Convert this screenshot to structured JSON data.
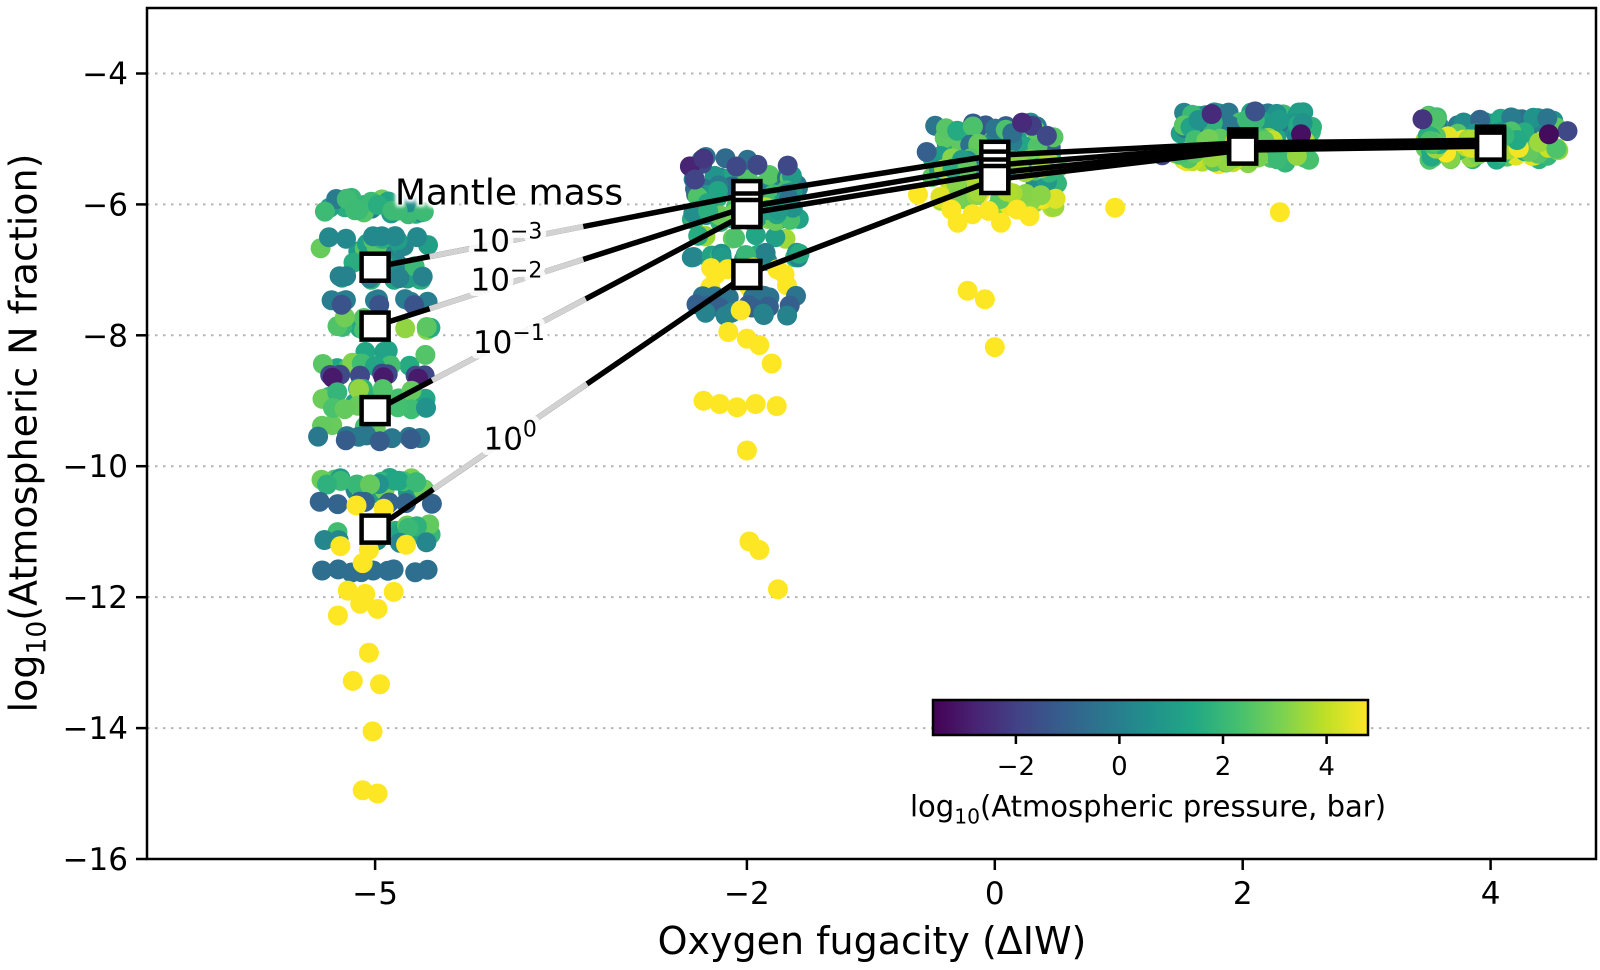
{
  "chart_data": {
    "type": "scatter",
    "title": "",
    "xlabel": {
      "text": "Oxygen fugacity (ΔIW)"
    },
    "ylabel": {
      "pre": "log",
      "sub": "10",
      "post": "(Atmospheric N fraction)"
    },
    "annotation": {
      "text": "Mantle mass"
    },
    "xlim": [
      -6.84,
      4.85
    ],
    "ylim": [
      -16,
      -3.0
    ],
    "xticks": [
      {
        "v": -5,
        "label": "−5"
      },
      {
        "v": -2,
        "label": "−2"
      },
      {
        "v": 0,
        "label": "0"
      },
      {
        "v": 2,
        "label": "2"
      },
      {
        "v": 4,
        "label": "4"
      }
    ],
    "yticks": [
      {
        "v": -4,
        "label": "−4"
      },
      {
        "v": -6,
        "label": "−6"
      },
      {
        "v": -8,
        "label": "−8"
      },
      {
        "v": -10,
        "label": "−10"
      },
      {
        "v": -12,
        "label": "−12"
      },
      {
        "v": -14,
        "label": "−14"
      },
      {
        "v": -16,
        "label": "−16"
      }
    ],
    "grid": {
      "axis": "y",
      "style": "dotted",
      "color": "#b5b5b5"
    },
    "colorbar": {
      "pre": "log",
      "sub": "10",
      "post": "(Atmospheric pressure, bar)",
      "colormap": "viridis",
      "vmin": -3.6,
      "vmax": 4.8,
      "ticks": [
        {
          "v": -2,
          "label": "−2"
        },
        {
          "v": 0,
          "label": "0"
        },
        {
          "v": 2,
          "label": "2"
        },
        {
          "v": 4,
          "label": "4"
        }
      ]
    },
    "series": [
      {
        "name": "mantle mass 1e-3",
        "label_base": "10",
        "label_exp": "−3",
        "x": [
          -5,
          -2,
          0,
          2,
          4
        ],
        "y": [
          -6.96,
          -5.85,
          -5.25,
          -5.06,
          -5.02
        ],
        "label_at": {
          "x": -3.94,
          "y": -6.55
        }
      },
      {
        "name": "mantle mass 1e-2",
        "label_base": "10",
        "label_exp": "−2",
        "x": [
          -5,
          -2,
          0,
          2,
          4
        ],
        "y": [
          -7.86,
          -6.04,
          -5.4,
          -5.1,
          -5.05
        ],
        "label_at": {
          "x": -3.94,
          "y": -7.15
        }
      },
      {
        "name": "mantle mass 1e-1",
        "label_base": "10",
        "label_exp": "−1",
        "x": [
          -5,
          -2,
          0,
          2,
          4
        ],
        "y": [
          -9.15,
          -6.14,
          -5.52,
          -5.13,
          -5.08
        ],
        "label_at": {
          "x": -3.92,
          "y": -8.1
        }
      },
      {
        "name": "mantle mass 1e0",
        "label_base": "10",
        "label_exp": "0",
        "x": [
          -5,
          -2,
          0,
          2,
          4
        ],
        "y": [
          -10.96,
          -7.07,
          -5.62,
          -5.17,
          -5.11
        ],
        "label_at": {
          "x": -3.91,
          "y": -9.58
        }
      }
    ],
    "scatter_clusters": [
      {
        "x": -5,
        "xspread": 0.45,
        "bands": [
          {
            "y0": -5.88,
            "y1": -6.72,
            "n": 36,
            "t0": 0.4,
            "t1": 0.8
          },
          {
            "y0": -6.74,
            "y1": -7.25,
            "n": 12,
            "t0": 0.42,
            "t1": 0.72
          }
        ],
        "rows": [
          {
            "y": -6.1,
            "n": 6,
            "t": 0.68
          },
          {
            "y": -6.5,
            "n": 6,
            "t": 0.47
          },
          {
            "y": -7.12,
            "n": 5,
            "t": 0.44
          }
        ]
      },
      {
        "x": -5,
        "xspread": 0.45,
        "bands": [
          {
            "y0": -7.72,
            "y1": -8.52,
            "n": 26,
            "t0": 0.55,
            "t1": 0.88
          }
        ],
        "rows": [
          {
            "y": -7.47,
            "n": 8,
            "t": 0.42
          },
          {
            "y": -7.53,
            "n": 3,
            "t": 0.26
          },
          {
            "y": -8.6,
            "n": 7,
            "t": 0.22
          },
          {
            "y": -8.65,
            "n": 3,
            "t": 0.07
          }
        ]
      },
      {
        "x": -5,
        "xspread": 0.45,
        "bands": [
          {
            "y0": -8.72,
            "y1": -9.45,
            "n": 26,
            "t0": 0.5,
            "t1": 0.85
          }
        ],
        "rows": [
          {
            "y": -9.55,
            "n": 7,
            "t": 0.4
          },
          {
            "y": -9.61,
            "n": 3,
            "t": 0.29
          }
        ]
      },
      {
        "x": -5,
        "xspread": 0.45,
        "bands": [
          {
            "y0": -9.72,
            "y1": -10.45,
            "n": 24,
            "t0": 0.45,
            "t1": 0.8
          },
          {
            "y0": -10.68,
            "y1": -11.05,
            "n": 12,
            "t0": 0.55,
            "t1": 0.78
          }
        ],
        "rows": [
          {
            "y": -10.56,
            "n": 8,
            "t": 0.32
          },
          {
            "y": -11.15,
            "n": 6,
            "t": 0.46
          },
          {
            "y": -11.6,
            "n": 9,
            "t": 0.36
          }
        ]
      },
      {
        "x": -2,
        "xspread": 0.45,
        "bands": [
          {
            "y0": -5.28,
            "y1": -5.98,
            "n": 42,
            "t0": 0.3,
            "t1": 0.75
          },
          {
            "y0": -5.98,
            "y1": -6.52,
            "n": 42,
            "t0": 0.45,
            "t1": 0.9
          },
          {
            "y0": -6.52,
            "y1": -6.88,
            "n": 18,
            "t0": 0.4,
            "t1": 0.68
          }
        ],
        "rows": [
          {
            "y": -5.4,
            "n": 4,
            "t": 0.22
          }
        ],
        "extra": [
          [
            -2.46,
            -5.42,
            0.1
          ],
          [
            -2.35,
            -5.3,
            0.16
          ],
          [
            -2.42,
            -5.62,
            0.2
          ]
        ]
      },
      {
        "x": -2,
        "xspread": 0.4,
        "rows": [
          {
            "y": -6.98,
            "n": 4,
            "t": 1.0
          },
          {
            "y": -7.08,
            "n": 3,
            "t": 1.0
          },
          {
            "y": -7.26,
            "n": 3,
            "t": 1.0
          },
          {
            "y": -7.42,
            "n": 7,
            "t": 0.38
          },
          {
            "y": -7.55,
            "n": 8,
            "t": 0.3
          },
          {
            "y": -7.68,
            "n": 6,
            "t": 0.44
          }
        ],
        "extra": [
          [
            -2.05,
            -7.62,
            1.0
          ]
        ]
      },
      {
        "x": 0,
        "xspread": 0.52,
        "bands": [
          {
            "y0": -4.72,
            "y1": -5.32,
            "n": 50,
            "t0": 0.25,
            "t1": 0.8
          },
          {
            "y0": -5.32,
            "y1": -5.72,
            "n": 50,
            "t0": 0.4,
            "t1": 0.92
          },
          {
            "y0": -5.72,
            "y1": -6.02,
            "n": 26,
            "t0": 0.75,
            "t1": 1.0
          }
        ],
        "extra": [
          [
            0.3,
            -4.8,
            0.18
          ],
          [
            0.42,
            -4.95,
            0.22
          ],
          [
            0.22,
            -4.75,
            0.12
          ],
          [
            -0.55,
            -5.2,
            0.3
          ]
        ]
      },
      {
        "x": 2,
        "xspread": 0.56,
        "bands": [
          {
            "y0": -4.58,
            "y1": -5.0,
            "n": 52,
            "t0": 0.3,
            "t1": 0.75
          },
          {
            "y0": -5.0,
            "y1": -5.42,
            "n": 58,
            "t0": 0.65,
            "t1": 1.0
          }
        ],
        "extra": [
          [
            1.35,
            -5.25,
            0.2
          ],
          [
            2.47,
            -4.93,
            0.04
          ],
          [
            1.75,
            -4.62,
            0.12
          ],
          [
            2.1,
            -4.58,
            0.25
          ]
        ]
      },
      {
        "x": 4,
        "xspread": 0.55,
        "bands": [
          {
            "y0": -4.52,
            "y1": -4.95,
            "n": 52,
            "t0": 0.3,
            "t1": 0.78
          },
          {
            "y0": -4.95,
            "y1": -5.38,
            "n": 58,
            "t0": 0.6,
            "t1": 1.0
          }
        ],
        "extra": [
          [
            4.62,
            -4.88,
            0.22
          ],
          [
            4.53,
            -5.15,
            0.72
          ],
          [
            4.47,
            -4.93,
            0.03
          ],
          [
            3.45,
            -4.7,
            0.15
          ]
        ]
      }
    ],
    "outlier_points_yellow": [
      [
        -5.15,
        -10.6
      ],
      [
        -4.93,
        -10.65
      ],
      [
        -5.28,
        -11.22
      ],
      [
        -5.05,
        -11.28
      ],
      [
        -4.75,
        -11.2
      ],
      [
        -5.1,
        -11.48
      ],
      [
        -5.22,
        -11.9
      ],
      [
        -5.08,
        -11.95
      ],
      [
        -4.85,
        -11.92
      ],
      [
        -5.12,
        -12.1
      ],
      [
        -4.98,
        -12.18
      ],
      [
        -5.3,
        -12.28
      ],
      [
        -5.05,
        -12.85
      ],
      [
        -5.18,
        -13.28
      ],
      [
        -4.96,
        -13.33
      ],
      [
        -5.02,
        -14.05
      ],
      [
        -5.1,
        -14.95
      ],
      [
        -4.98,
        -15.0
      ],
      [
        -2.15,
        -7.95
      ],
      [
        -2.0,
        -8.05
      ],
      [
        -1.9,
        -8.15
      ],
      [
        -1.8,
        -8.43
      ],
      [
        -2.35,
        -9.0
      ],
      [
        -2.22,
        -9.05
      ],
      [
        -2.08,
        -9.1
      ],
      [
        -1.93,
        -9.05
      ],
      [
        -1.76,
        -9.08
      ],
      [
        -2.0,
        -9.76
      ],
      [
        -1.98,
        -11.15
      ],
      [
        -1.9,
        -11.28
      ],
      [
        -1.75,
        -11.88
      ],
      [
        -0.62,
        -5.85
      ],
      [
        -0.35,
        -6.08
      ],
      [
        -0.18,
        -6.15
      ],
      [
        -0.3,
        -6.28
      ],
      [
        -0.05,
        -6.1
      ],
      [
        0.05,
        -6.28
      ],
      [
        0.18,
        -6.08
      ],
      [
        0.28,
        -6.18
      ],
      [
        -0.22,
        -7.32
      ],
      [
        -0.08,
        -7.45
      ],
      [
        0.0,
        -8.18
      ],
      [
        0.97,
        -6.05
      ],
      [
        2.3,
        -6.12
      ]
    ]
  }
}
